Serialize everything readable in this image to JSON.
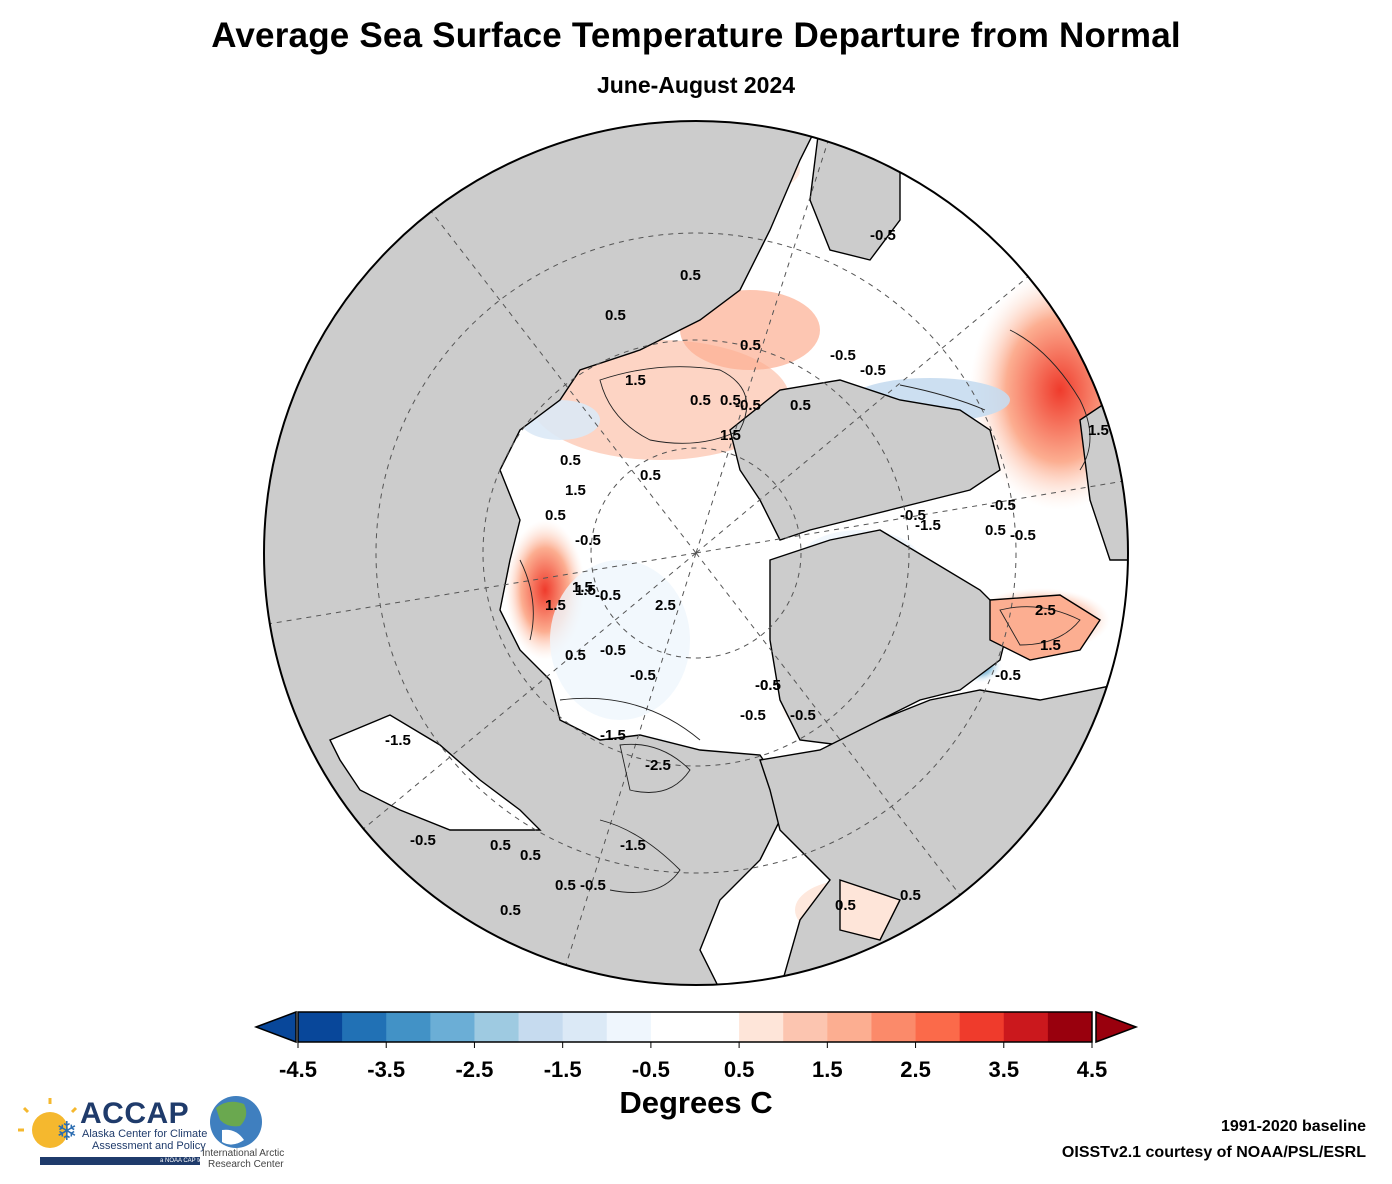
{
  "title": "Average Sea Surface Temperature Departure from Normal",
  "subtitle": "June-August 2024",
  "colorbar": {
    "label": "Degrees C",
    "ticks": [
      "-4.5",
      "-3.5",
      "-2.5",
      "-1.5",
      "-0.5",
      "0.5",
      "1.5",
      "2.5",
      "3.5",
      "4.5"
    ],
    "colors": [
      "#08479a",
      "#2171b5",
      "#4292c6",
      "#6baed6",
      "#9ecae1",
      "#c6dbef",
      "#dbe9f6",
      "#eff6fd",
      "#ffffff",
      "#ffffff",
      "#fee5d9",
      "#fcc5b0",
      "#fcae91",
      "#fb8a6a",
      "#fb6a4a",
      "#ef3b2c",
      "#cb181d",
      "#99000d"
    ],
    "under_color": "#08479a",
    "over_color": "#99000d"
  },
  "map": {
    "land_color": "#cccccc",
    "ocean_neutral_color": "#ffffff",
    "contour_labels": [
      "0.5",
      "1.5",
      "0.5",
      "-0.5",
      "1.5",
      "0.5",
      "1.5",
      "0.5",
      "-0.5",
      "0.5",
      "1.5",
      "0.5",
      "0.5",
      "-0.5",
      "-0.5",
      "0.5",
      "2.5",
      "1.5",
      "0.5",
      "-0.5",
      "-0.5",
      "-0.5",
      "-0.5",
      "0.5",
      "1.5",
      "-0.5",
      "-1.5",
      "-0.5",
      "0.5",
      "2.5",
      "1.5",
      "-0.5",
      "-2.5",
      "-1.5",
      "-0.5",
      "-1.5",
      "0.5",
      "-0.5",
      "0.5",
      "0.5",
      "-0.5",
      "0.5",
      "-1.5",
      "0.5",
      "-0.5",
      "-0.5",
      "1.5",
      "0.5",
      "0.5",
      "-0.5"
    ]
  },
  "credits": {
    "baseline": "1991-2020 baseline",
    "source": "OISSTv2.1 courtesy of NOAA/PSL/ESRL"
  },
  "logos": {
    "accap_name": "ACCAP",
    "accap_line1": "Alaska Center for Climate",
    "accap_line2": "Assessment and Policy",
    "accap_noaa": "a NOAA CAP team",
    "iarc_line1": "International Arctic",
    "iarc_line2": "Research Center"
  }
}
